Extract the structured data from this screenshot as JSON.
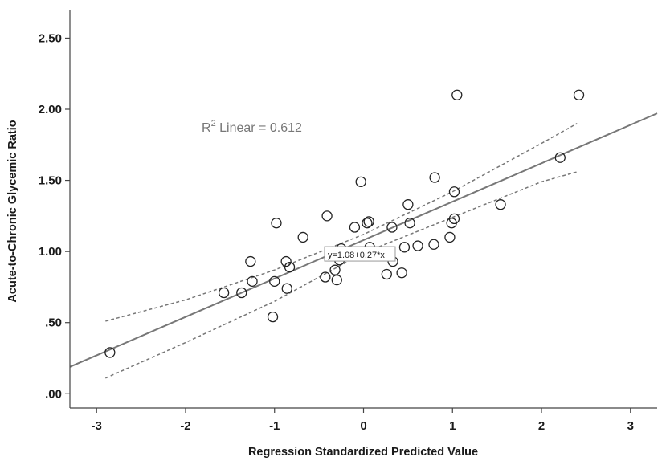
{
  "chart_data": {
    "type": "scatter",
    "xlabel": "Regression Standardized Predicted Value",
    "ylabel": "Acute-to-Chronic Glycemic Ratio",
    "xlim": [
      -3.3,
      3.3
    ],
    "ylim": [
      -0.1,
      2.7
    ],
    "x_ticks": [
      -3,
      -2,
      -1,
      0,
      1,
      2,
      3
    ],
    "x_tick_labels": [
      "-3",
      "-2",
      "-1",
      "0",
      "1",
      "2",
      "3"
    ],
    "y_ticks": [
      0,
      0.5,
      1.0,
      1.5,
      2.0,
      2.5
    ],
    "y_tick_labels": [
      ".00",
      ".50",
      "1.00",
      "1.50",
      "2.00",
      "2.50"
    ],
    "grid": false,
    "annotations": {
      "r2_base": "R",
      "r2_sup": "2",
      "r2_text": " Linear = 0.612",
      "equation": "y=1.08+0.27*x"
    },
    "fit_line": {
      "intercept": 1.08,
      "slope": 0.27
    },
    "confidence_band": {
      "x": [
        -2.9,
        -2.0,
        -1.0,
        0.0,
        1.0,
        2.0,
        2.4
      ],
      "upper": [
        0.51,
        0.66,
        0.87,
        1.12,
        1.42,
        1.76,
        1.9
      ],
      "lower": [
        0.11,
        0.36,
        0.65,
        0.99,
        1.24,
        1.49,
        1.56
      ]
    },
    "points": [
      {
        "x": -2.85,
        "y": 0.29
      },
      {
        "x": -1.57,
        "y": 0.71
      },
      {
        "x": -1.37,
        "y": 0.71
      },
      {
        "x": -1.27,
        "y": 0.93
      },
      {
        "x": -1.25,
        "y": 0.79
      },
      {
        "x": -1.02,
        "y": 0.54
      },
      {
        "x": -1.0,
        "y": 0.79
      },
      {
        "x": -0.98,
        "y": 1.2
      },
      {
        "x": -0.87,
        "y": 0.93
      },
      {
        "x": -0.86,
        "y": 0.74
      },
      {
        "x": -0.83,
        "y": 0.89
      },
      {
        "x": -0.68,
        "y": 1.1
      },
      {
        "x": -0.43,
        "y": 0.82
      },
      {
        "x": -0.41,
        "y": 1.25
      },
      {
        "x": -0.32,
        "y": 0.87
      },
      {
        "x": -0.3,
        "y": 0.8
      },
      {
        "x": -0.27,
        "y": 0.94
      },
      {
        "x": -0.25,
        "y": 1.02
      },
      {
        "x": -0.18,
        "y": 0.97
      },
      {
        "x": -0.1,
        "y": 1.17
      },
      {
        "x": -0.03,
        "y": 1.49
      },
      {
        "x": 0.04,
        "y": 1.2
      },
      {
        "x": 0.06,
        "y": 1.21
      },
      {
        "x": 0.07,
        "y": 1.03
      },
      {
        "x": 0.26,
        "y": 0.84
      },
      {
        "x": 0.32,
        "y": 1.17
      },
      {
        "x": 0.33,
        "y": 0.93
      },
      {
        "x": 0.43,
        "y": 0.85
      },
      {
        "x": 0.46,
        "y": 1.03
      },
      {
        "x": 0.5,
        "y": 1.33
      },
      {
        "x": 0.52,
        "y": 1.2
      },
      {
        "x": 0.61,
        "y": 1.04
      },
      {
        "x": 0.79,
        "y": 1.05
      },
      {
        "x": 0.8,
        "y": 1.52
      },
      {
        "x": 0.97,
        "y": 1.1
      },
      {
        "x": 0.99,
        "y": 1.2
      },
      {
        "x": 1.02,
        "y": 1.23
      },
      {
        "x": 1.02,
        "y": 1.42
      },
      {
        "x": 1.05,
        "y": 2.1
      },
      {
        "x": 1.54,
        "y": 1.33
      },
      {
        "x": 2.21,
        "y": 1.66
      },
      {
        "x": 2.42,
        "y": 2.1
      }
    ]
  }
}
